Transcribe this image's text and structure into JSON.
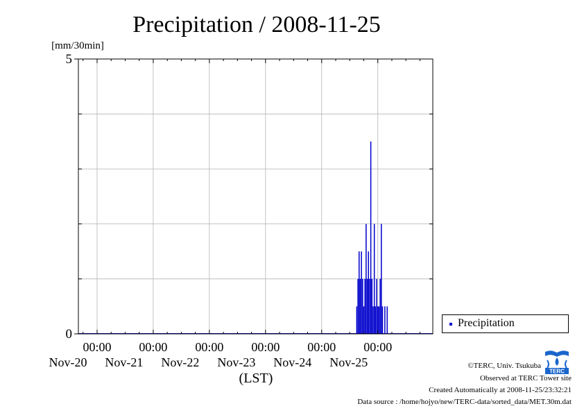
{
  "chart_data": {
    "type": "bar",
    "title": "Precipitation / 2008-11-25",
    "ylabel": "[mm/30min]",
    "xlabel": "(LST)",
    "ylim": [
      0,
      5
    ],
    "yticks": [
      0,
      5
    ],
    "y_gridlines": [
      1,
      2,
      3,
      4
    ],
    "xlim": [
      "2008-11-19 16:00",
      "2008-11-25 23:30"
    ],
    "x_major_ticks": [
      {
        "time": "2008-11-20 00:00",
        "time_label": "00:00",
        "date_label": "Nov-20"
      },
      {
        "time": "2008-11-21 00:00",
        "time_label": "00:00",
        "date_label": "Nov-21"
      },
      {
        "time": "2008-11-22 00:00",
        "time_label": "00:00",
        "date_label": "Nov-22"
      },
      {
        "time": "2008-11-23 00:00",
        "time_label": "00:00",
        "date_label": "Nov-23"
      },
      {
        "time": "2008-11-24 00:00",
        "time_label": "00:00",
        "date_label": "Nov-24"
      },
      {
        "time": "2008-11-25 00:00",
        "time_label": "00:00",
        "date_label": "Nov-25"
      }
    ],
    "grid": true,
    "legend_position": "bottom-right-outside",
    "series": [
      {
        "name": "Precipitation",
        "color": "#0000cc",
        "points": [
          {
            "t": "2008-11-24 15:00",
            "v": 0.5
          },
          {
            "t": "2008-11-24 15:30",
            "v": 1.0
          },
          {
            "t": "2008-11-24 16:00",
            "v": 1.5
          },
          {
            "t": "2008-11-24 16:30",
            "v": 1.0
          },
          {
            "t": "2008-11-24 17:00",
            "v": 1.5
          },
          {
            "t": "2008-11-24 17:30",
            "v": 1.0
          },
          {
            "t": "2008-11-24 18:00",
            "v": 0.5
          },
          {
            "t": "2008-11-24 18:30",
            "v": 1.0
          },
          {
            "t": "2008-11-24 19:00",
            "v": 2.0
          },
          {
            "t": "2008-11-24 19:30",
            "v": 1.0
          },
          {
            "t": "2008-11-24 20:00",
            "v": 1.5
          },
          {
            "t": "2008-11-24 20:30",
            "v": 1.0
          },
          {
            "t": "2008-11-24 21:00",
            "v": 3.5
          },
          {
            "t": "2008-11-24 21:30",
            "v": 1.0
          },
          {
            "t": "2008-11-24 22:00",
            "v": 0.5
          },
          {
            "t": "2008-11-24 22:30",
            "v": 2.0
          },
          {
            "t": "2008-11-24 23:00",
            "v": 0.5
          },
          {
            "t": "2008-11-24 23:30",
            "v": 1.0
          },
          {
            "t": "2008-11-25 00:00",
            "v": 0.5
          },
          {
            "t": "2008-11-25 00:30",
            "v": 0.5
          },
          {
            "t": "2008-11-25 01:00",
            "v": 1.0
          },
          {
            "t": "2008-11-25 01:30",
            "v": 2.0
          },
          {
            "t": "2008-11-25 02:00",
            "v": 0.5
          },
          {
            "t": "2008-11-25 03:00",
            "v": 0.5
          },
          {
            "t": "2008-11-25 04:00",
            "v": 0.5
          }
        ]
      }
    ]
  },
  "footer": {
    "copyright": "©TERC, Univ. Tsukuba",
    "observed": "Observed at TERC Tower site",
    "created": "Created Automatically at 2008-11-25/23:32:21",
    "source": "Data source : /home/hojyo/new/TERC-data/sorted_data/MET.30m.dat"
  },
  "logo": {
    "text": "TERC",
    "icon": "terc-logo-icon",
    "color": "#1a66cc"
  }
}
